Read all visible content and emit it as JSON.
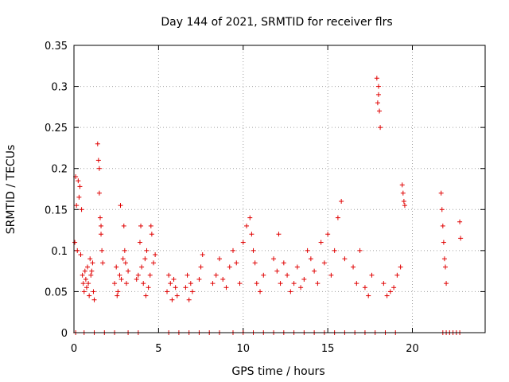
{
  "chart_data": {
    "type": "scatter",
    "title": "Day 144 of 2021, SRMTID for receiver flrs",
    "xlabel": "GPS time / hours",
    "ylabel": "SRMTID / TECUs",
    "xlim": [
      0,
      24.3
    ],
    "ylim": [
      0,
      0.35
    ],
    "xticks": [
      0,
      5,
      10,
      15,
      20
    ],
    "xtick_labels": [
      "0",
      "5",
      "10",
      "15",
      "20"
    ],
    "yticks": [
      0,
      0.05,
      0.1,
      0.15,
      0.2,
      0.25,
      0.3,
      0.35
    ],
    "ytick_labels": [
      "0",
      "0.05",
      "0.1",
      "0.15",
      "0.2",
      "0.25",
      "0.3",
      "0.35"
    ],
    "grid": true,
    "marker": "plus",
    "color": "#e00000",
    "series": [
      {
        "x": [
          0.05,
          0.1,
          0.15,
          0.2,
          0.25,
          0.3,
          0.35,
          0.4,
          0.45,
          0.5,
          0.55,
          0.6,
          0.65,
          0.7,
          0.75,
          0.8,
          0.85,
          0.9,
          0.95,
          1.0,
          1.05,
          1.1,
          1.15,
          1.2,
          1.4,
          1.45,
          1.5,
          1.55,
          1.6,
          1.65,
          1.7,
          1.5,
          1.6,
          2.4,
          2.5,
          2.6,
          2.7,
          2.8,
          2.9,
          3.0,
          3.1,
          3.2,
          2.55,
          2.75,
          2.95,
          3.05,
          3.7,
          3.8,
          3.9,
          4.0,
          4.1,
          4.2,
          4.3,
          4.4,
          4.5,
          4.6,
          4.7,
          4.8,
          3.95,
          4.25,
          4.55,
          5.5,
          5.6,
          5.7,
          5.8,
          5.9,
          6.0,
          6.1,
          6.6,
          6.7,
          6.8,
          6.9,
          7.0,
          7.4,
          7.5,
          7.6,
          8.2,
          8.4,
          8.6,
          8.8,
          9.0,
          9.2,
          9.4,
          9.6,
          9.8,
          10.0,
          10.2,
          10.4,
          10.5,
          10.6,
          10.7,
          10.8,
          11.0,
          11.2,
          11.8,
          12.0,
          12.1,
          12.2,
          12.4,
          12.6,
          12.8,
          13.0,
          13.2,
          13.4,
          13.6,
          13.8,
          14.0,
          14.2,
          14.4,
          14.6,
          14.8,
          15.0,
          15.2,
          15.4,
          15.6,
          15.8,
          16.0,
          16.5,
          16.7,
          16.9,
          17.2,
          17.4,
          17.6,
          17.9,
          18.0,
          18.05,
          18.1,
          17.95,
          18.0,
          18.3,
          18.5,
          18.7,
          18.9,
          19.1,
          19.3,
          19.4,
          19.45,
          19.5,
          19.55,
          21.7,
          21.75,
          21.8,
          21.85,
          21.9,
          21.95,
          22.0,
          22.8,
          22.85,
          0.1,
          0.6,
          1.2,
          1.8,
          2.4,
          3.2,
          3.8,
          5.6,
          6.2,
          6.8,
          7.4,
          8.0,
          8.6,
          9.4,
          10.0,
          10.6,
          11.2,
          11.8,
          12.4,
          13.0,
          13.6,
          14.2,
          14.8,
          15.4,
          16.0,
          16.6,
          17.2,
          17.8,
          18.4,
          19.0,
          21.8,
          22.0,
          22.2,
          22.4,
          22.6,
          22.8
        ],
        "y": [
          0.11,
          0.19,
          0.155,
          0.1,
          0.185,
          0.165,
          0.178,
          0.095,
          0.15,
          0.07,
          0.06,
          0.05,
          0.075,
          0.065,
          0.055,
          0.08,
          0.06,
          0.045,
          0.09,
          0.07,
          0.075,
          0.085,
          0.05,
          0.04,
          0.23,
          0.21,
          0.2,
          0.14,
          0.12,
          0.1,
          0.085,
          0.17,
          0.13,
          0.06,
          0.08,
          0.05,
          0.07,
          0.065,
          0.09,
          0.1,
          0.06,
          0.075,
          0.045,
          0.155,
          0.13,
          0.085,
          0.065,
          0.07,
          0.11,
          0.08,
          0.06,
          0.09,
          0.1,
          0.055,
          0.07,
          0.12,
          0.085,
          0.095,
          0.13,
          0.045,
          0.13,
          0.05,
          0.07,
          0.06,
          0.04,
          0.065,
          0.055,
          0.045,
          0.055,
          0.07,
          0.04,
          0.06,
          0.05,
          0.065,
          0.08,
          0.095,
          0.06,
          0.07,
          0.09,
          0.065,
          0.055,
          0.08,
          0.1,
          0.085,
          0.06,
          0.11,
          0.13,
          0.14,
          0.12,
          0.1,
          0.085,
          0.06,
          0.05,
          0.07,
          0.09,
          0.075,
          0.12,
          0.06,
          0.085,
          0.07,
          0.05,
          0.06,
          0.08,
          0.055,
          0.065,
          0.1,
          0.09,
          0.075,
          0.06,
          0.11,
          0.085,
          0.12,
          0.07,
          0.1,
          0.14,
          0.16,
          0.09,
          0.08,
          0.06,
          0.1,
          0.055,
          0.045,
          0.07,
          0.31,
          0.29,
          0.27,
          0.25,
          0.28,
          0.3,
          0.06,
          0.045,
          0.05,
          0.055,
          0.07,
          0.08,
          0.18,
          0.17,
          0.16,
          0.155,
          0.17,
          0.15,
          0.13,
          0.11,
          0.09,
          0.08,
          0.06,
          0.135,
          0.115,
          0,
          0,
          0,
          0,
          0,
          0,
          0,
          0,
          0,
          0,
          0,
          0,
          0,
          0,
          0,
          0,
          0,
          0,
          0,
          0,
          0,
          0,
          0,
          0,
          0,
          0,
          0,
          0,
          0,
          0,
          0,
          0,
          0,
          0,
          0,
          0
        ]
      }
    ]
  }
}
